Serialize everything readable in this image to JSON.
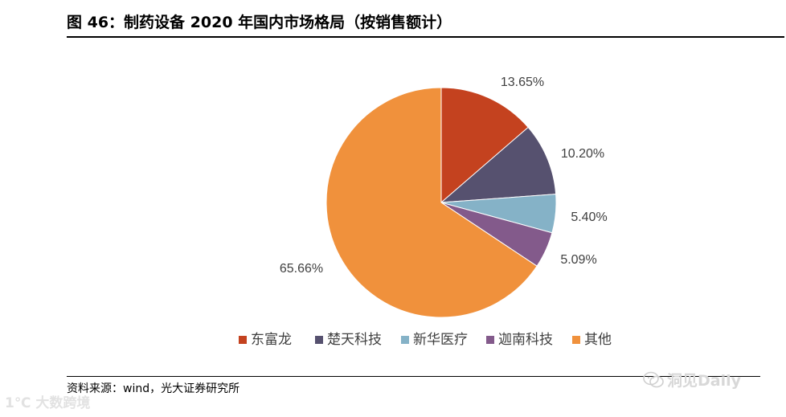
{
  "title": "图 46：制药设备 2020 年国内市场格局（按销售额计）",
  "source": "资料来源：wind，光大证券研究所",
  "watermarks": {
    "right_text": "洞见Daily",
    "left_text": "大数跨境",
    "left_mark": "1℃"
  },
  "chart_data": {
    "type": "pie",
    "title": "制药设备 2020 年国内市场格局（按销售额计）",
    "start_angle_deg": 0,
    "direction": "clockwise",
    "legend_position": "bottom",
    "slices": [
      {
        "label": "东富龙",
        "value": 13.65,
        "display": "13.65%",
        "color": "#c4421f"
      },
      {
        "label": "楚天科技",
        "value": 10.2,
        "display": "10.20%",
        "color": "#56516f"
      },
      {
        "label": "新华医疗",
        "value": 5.4,
        "display": "5.40%",
        "color": "#85b2c7"
      },
      {
        "label": "迦南科技",
        "value": 5.09,
        "display": "5.09%",
        "color": "#835a8b"
      },
      {
        "label": "其他",
        "value": 65.66,
        "display": "65.66%",
        "color": "#f0913c"
      }
    ]
  }
}
